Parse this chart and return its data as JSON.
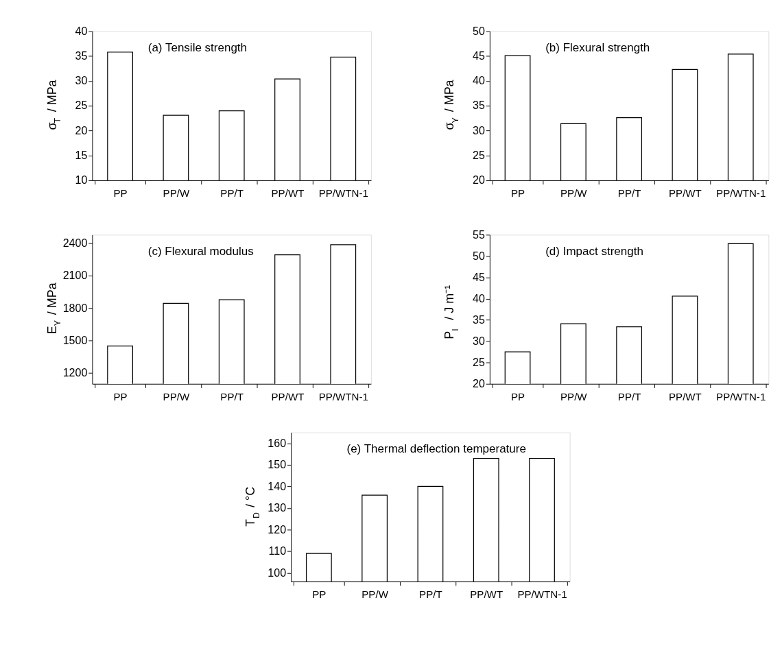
{
  "chart_data": [
    {
      "type": "bar",
      "title": "(a)  Tensile strength",
      "ylabel": "σ$_{T}$ / MPa",
      "categories": [
        "PP",
        "PP/W",
        "PP/T",
        "PP/WT",
        "PP/WTN-1"
      ],
      "values": [
        35.8,
        23.1,
        24.0,
        30.4,
        34.8
      ],
      "color": "#ffffff",
      "ylim": [
        10,
        40
      ],
      "yticks": [
        10,
        15,
        20,
        25,
        30,
        35,
        40
      ]
    },
    {
      "type": "bar",
      "title": "(b)  Flexural strength",
      "ylabel": "σ$_{Y}$ / MPa",
      "categories": [
        "PP",
        "PP/W",
        "PP/T",
        "PP/WT",
        "PP/WTN-1"
      ],
      "values": [
        45.1,
        31.4,
        32.6,
        42.3,
        45.4
      ],
      "color": "#ffffff",
      "ylim": [
        20,
        50
      ],
      "yticks": [
        20,
        25,
        30,
        35,
        40,
        45,
        50
      ]
    },
    {
      "type": "bar",
      "title": "(c)   Flexural modulus",
      "ylabel": "E$_{Y}$ / MPa",
      "categories": [
        "PP",
        "PP/W",
        "PP/T",
        "PP/WT",
        "PP/WTN-1"
      ],
      "values": [
        1450,
        1845,
        1878,
        2295,
        2388
      ],
      "color": "#ffffff",
      "ylim": [
        1100,
        2480
      ],
      "yticks": [
        1200,
        1500,
        1800,
        2100,
        2400
      ]
    },
    {
      "type": "bar",
      "title": "(d)   Impact strength",
      "ylabel": "P$_{I}$ / J m⁻¹",
      "categories": [
        "PP",
        "PP/W",
        "PP/T",
        "PP/WT",
        "PP/WTN-1"
      ],
      "values": [
        27.5,
        34.1,
        33.4,
        40.6,
        52.9
      ],
      "color": "#ffffff",
      "ylim": [
        20,
        55
      ],
      "yticks": [
        20,
        25,
        30,
        35,
        40,
        45,
        50,
        55
      ]
    },
    {
      "type": "bar",
      "title": "(e) Thermal deflection temperature",
      "ylabel": "T$_{D}$ / °C",
      "categories": [
        "PP",
        "PP/W",
        "PP/T",
        "PP/WT",
        "PP/WTN-1"
      ],
      "values": [
        109,
        136,
        140,
        153,
        153
      ],
      "color": "#ffffff",
      "ylim": [
        96,
        165
      ],
      "yticks": [
        100,
        110,
        120,
        130,
        140,
        150,
        160
      ]
    }
  ]
}
